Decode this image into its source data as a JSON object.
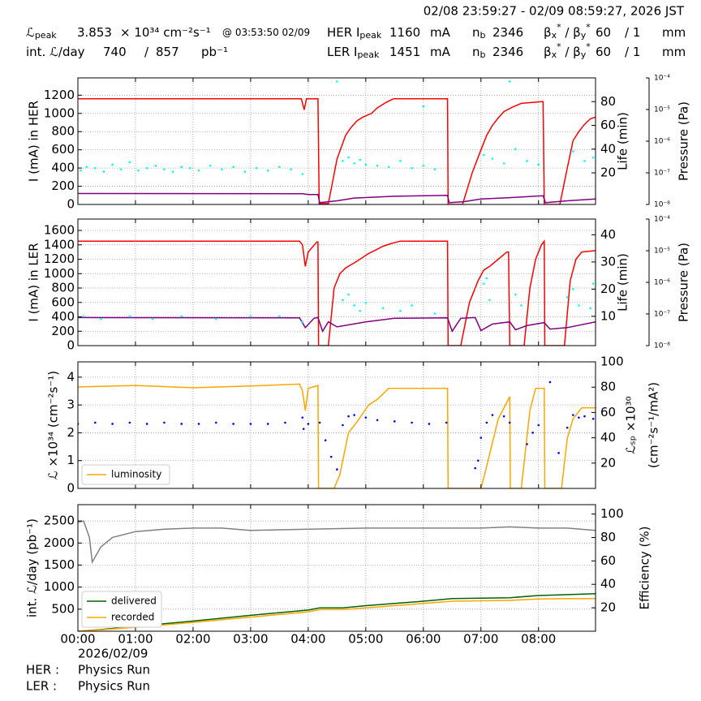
{
  "header": {
    "title": "02/08 23:59:27 - 02/09 08:59:27, 2026 JST",
    "rows": [
      [
        [
          {
            "text": "ℒ"
          },
          {
            "text": "peak",
            "pos": "sub"
          }
        ],
        [
          {
            "text": "3.853"
          }
        ],
        [
          {
            "text": "× 10³⁴ cm⁻²s⁻¹"
          }
        ],
        [
          {
            "text": "@ 03:53:50 02/09"
          }
        ],
        [
          {
            "text": "HER I"
          },
          {
            "text": "peak",
            "pos": "sub"
          }
        ],
        [
          {
            "text": "1160"
          }
        ],
        [
          {
            "text": "mA"
          }
        ],
        [
          {
            "text": "n"
          },
          {
            "text": "b",
            "pos": "sub"
          }
        ],
        [
          {
            "text": "2346"
          }
        ],
        [
          {
            "text": "β"
          },
          {
            "text": "x",
            "pos": "sub"
          },
          {
            "text": "*",
            "pos": "sup"
          },
          {
            "text": " / β"
          },
          {
            "text": "y",
            "pos": "sub"
          },
          {
            "text": "*",
            "pos": "sup"
          }
        ],
        [
          {
            "text": "60"
          }
        ],
        [
          {
            "text": "/ 1"
          }
        ],
        [
          {
            "text": "mm"
          }
        ]
      ],
      [
        [
          {
            "text": "int. ℒ/day"
          }
        ],
        [
          {
            "text": "740"
          }
        ],
        [
          {
            "text": "/"
          }
        ],
        [
          {
            "text": "857"
          }
        ],
        [
          {
            "text": "pb⁻¹"
          }
        ],
        [
          {
            "text": "LER I"
          },
          {
            "text": "peak",
            "pos": "sub"
          }
        ],
        [
          {
            "text": "1451"
          }
        ],
        [
          {
            "text": "mA"
          }
        ],
        [
          {
            "text": "n"
          },
          {
            "text": "b",
            "pos": "sub"
          }
        ],
        [
          {
            "text": "2346"
          }
        ],
        [
          {
            "text": "β"
          },
          {
            "text": "x",
            "pos": "sub"
          },
          {
            "text": "*",
            "pos": "sup"
          },
          {
            "text": " / β"
          },
          {
            "text": "y",
            "pos": "sub"
          },
          {
            "text": "*",
            "pos": "sup"
          }
        ],
        [
          {
            "text": "60"
          }
        ],
        [
          {
            "text": "/ 1"
          }
        ],
        [
          {
            "text": "mm"
          }
        ]
      ]
    ]
  },
  "chart_data": [
    {
      "type": "line",
      "ylabel": "I (mA) in HER",
      "y2label": "Life (min)",
      "y3label": "Pressure (Pa)",
      "xlim": [
        0,
        8.99
      ],
      "ylim": [
        0,
        1390
      ],
      "yticks": [
        0,
        200,
        400,
        600,
        800,
        1000,
        1200
      ],
      "y2lim": [
        -6.6,
        100
      ],
      "y2ticks": [
        20,
        40,
        60,
        80
      ],
      "y3lim": [
        1e-08,
        0.0001
      ],
      "y3log": true,
      "y3ticks": [
        {
          "value": 1e-08,
          "label": "10⁻⁸"
        },
        {
          "value": 1e-07,
          "label": "10⁻⁷"
        },
        {
          "value": 1e-06,
          "label": "10⁻⁶"
        },
        {
          "value": 1e-05,
          "label": "10⁻⁵"
        },
        {
          "value": 0.0001,
          "label": "10⁻⁴"
        }
      ],
      "grid": true,
      "series": [
        {
          "style": "line",
          "color": "#ff0000",
          "x": [
            0,
            3.88,
            3.93,
            3.97,
            4.15,
            4.17,
            4.19,
            4.35,
            4.5,
            4.65,
            4.75,
            4.85,
            4.95,
            5.1,
            5.2,
            5.35,
            5.48,
            6.42,
            6.43,
            6.68,
            6.85,
            7.0,
            7.1,
            7.2,
            7.3,
            7.4,
            7.55,
            7.7,
            8.06,
            8.08,
            8.1,
            8.37,
            8.5,
            8.6,
            8.7,
            8.8,
            8.9,
            8.99
          ],
          "values": [
            1160,
            1160,
            1040,
            1160,
            1160,
            1160,
            10,
            10,
            500,
            760,
            850,
            920,
            960,
            1000,
            1060,
            1120,
            1160,
            1160,
            0,
            0,
            350,
            600,
            760,
            870,
            950,
            1020,
            1070,
            1110,
            1130,
            1130,
            0,
            0,
            400,
            700,
            800,
            880,
            940,
            960
          ]
        },
        {
          "style": "line",
          "color": "#800080",
          "x": [
            0,
            3.9,
            4.0,
            4.17,
            4.2,
            4.5,
            4.8,
            5.5,
            6.42,
            6.45,
            6.7,
            7.0,
            7.5,
            8.08,
            8.12,
            8.5,
            8.99
          ],
          "values": [
            120,
            118,
            110,
            110,
            20,
            40,
            70,
            90,
            100,
            20,
            30,
            60,
            75,
            95,
            20,
            40,
            60
          ]
        },
        {
          "style": "scatter",
          "color": "#00ffff",
          "axis": "y2",
          "x": [
            0.05,
            0.15,
            0.3,
            0.45,
            0.6,
            0.75,
            0.9,
            1.05,
            1.2,
            1.35,
            1.5,
            1.65,
            1.8,
            1.95,
            2.1,
            2.3,
            2.5,
            2.7,
            2.9,
            3.1,
            3.3,
            3.5,
            3.7,
            3.9,
            4.6,
            4.7,
            4.8,
            4.9,
            5.0,
            5.2,
            5.4,
            5.6,
            5.8,
            6.0,
            6.2,
            4.5,
            7.05,
            7.2,
            7.4,
            7.6,
            7.8,
            8.0,
            8.6,
            8.8,
            8.95,
            7.5,
            6.0
          ],
          "values": [
            22,
            25,
            24,
            21,
            27,
            23,
            29,
            22,
            24,
            26,
            23,
            21,
            25,
            24,
            22,
            26,
            23,
            25,
            21,
            24,
            22,
            25,
            23,
            19,
            30,
            33,
            28,
            31,
            27,
            26,
            25,
            30,
            24,
            26,
            23,
            97,
            35,
            32,
            28,
            40,
            30,
            27,
            38,
            30,
            33,
            97,
            76
          ]
        }
      ]
    },
    {
      "type": "line",
      "ylabel": "I (mA) in LER",
      "y2label": "Life (min)",
      "y3label": "Pressure (Pa)",
      "xlim": [
        0,
        8.99
      ],
      "ylim": [
        0,
        1758
      ],
      "yticks": [
        0,
        200,
        400,
        600,
        800,
        1000,
        1200,
        1400,
        1600
      ],
      "y2lim": [
        -0.8,
        45.8
      ],
      "y2ticks": [
        10,
        20,
        30,
        40
      ],
      "y3lim": [
        1e-08,
        0.0001
      ],
      "y3log": true,
      "y3ticks": [
        {
          "value": 1e-08,
          "label": "10⁻⁸"
        },
        {
          "value": 1e-07,
          "label": "10⁻⁷"
        },
        {
          "value": 1e-06,
          "label": "10⁻⁶"
        },
        {
          "value": 1e-05,
          "label": "10⁻⁵"
        },
        {
          "value": 0.0001,
          "label": "10⁻⁴"
        }
      ],
      "grid": true,
      "series": [
        {
          "style": "line",
          "color": "#ff0000",
          "x": [
            0,
            3.85,
            3.9,
            3.95,
            4.0,
            4.15,
            4.17,
            4.18,
            4.35,
            4.45,
            4.55,
            4.65,
            4.8,
            4.9,
            5.05,
            5.15,
            5.3,
            5.45,
            5.6,
            6.42,
            6.43,
            6.65,
            6.8,
            6.95,
            7.05,
            7.15,
            7.3,
            7.45,
            7.48,
            7.5,
            7.75,
            7.85,
            7.95,
            8.05,
            8.1,
            8.11,
            8.45,
            8.55,
            8.65,
            8.75,
            8.99
          ],
          "values": [
            1451,
            1451,
            1400,
            1100,
            1300,
            1440,
            1440,
            0,
            0,
            800,
            1000,
            1080,
            1150,
            1200,
            1280,
            1320,
            1380,
            1420,
            1451,
            1451,
            0,
            0,
            600,
            900,
            1050,
            1100,
            1200,
            1300,
            1300,
            0,
            0,
            800,
            1200,
            1400,
            1450,
            0,
            0,
            900,
            1200,
            1300,
            1320
          ]
        },
        {
          "style": "line",
          "color": "#800080",
          "x": [
            0,
            3.85,
            3.95,
            4.1,
            4.17,
            4.25,
            4.35,
            4.5,
            5.0,
            5.5,
            6.42,
            6.5,
            6.65,
            6.9,
            7.0,
            7.2,
            7.5,
            7.6,
            7.8,
            8.1,
            8.2,
            8.5,
            8.99
          ],
          "values": [
            390,
            385,
            250,
            380,
            390,
            200,
            330,
            260,
            330,
            380,
            385,
            200,
            380,
            390,
            210,
            300,
            330,
            220,
            280,
            320,
            230,
            250,
            330
          ]
        },
        {
          "style": "scatter",
          "color": "#00ffff",
          "axis": "y2",
          "x": [
            0.1,
            0.4,
            0.9,
            1.3,
            1.8,
            2.4,
            3.0,
            3.5,
            3.9,
            4.6,
            4.7,
            4.8,
            4.9,
            5.0,
            5.3,
            5.6,
            5.8,
            6.2,
            7.05,
            7.1,
            7.15,
            7.6,
            7.7,
            8.5,
            8.6,
            8.7,
            8.9,
            8.95
          ],
          "values": [
            10,
            9,
            10,
            9,
            10,
            9,
            10,
            10,
            8,
            16,
            18,
            14,
            12,
            15,
            13,
            12,
            14,
            11,
            22,
            24,
            16,
            18,
            14,
            17,
            20,
            14,
            13,
            22
          ]
        }
      ]
    },
    {
      "type": "line",
      "ylabel": "ℒ ×10³⁴ (cm⁻²s⁻¹)",
      "y2label": [
        "ℒₛₚ ×10³⁰",
        "(cm⁻²s⁻¹/mA²)"
      ],
      "xlim": [
        0,
        8.99
      ],
      "ylim": [
        0,
        4.55
      ],
      "yticks": [
        0,
        1,
        2,
        3,
        4
      ],
      "y2lim": [
        0,
        100
      ],
      "y2ticks": [
        20,
        40,
        60,
        80,
        100
      ],
      "grid": true,
      "legend": "lower left",
      "series": [
        {
          "name": "luminosity",
          "style": "line",
          "color": "#ffa500",
          "x": [
            0,
            1.0,
            2.0,
            3.0,
            3.85,
            3.9,
            3.95,
            4.0,
            4.17,
            4.18,
            4.45,
            4.55,
            4.7,
            4.85,
            4.95,
            5.05,
            5.2,
            5.4,
            6.42,
            6.43,
            7.0,
            7.1,
            7.3,
            7.5,
            7.51,
            7.7,
            7.85,
            7.95,
            8.1,
            8.11,
            8.4,
            8.5,
            8.6,
            8.75,
            8.99
          ],
          "values": [
            3.65,
            3.7,
            3.62,
            3.68,
            3.75,
            3.5,
            2.8,
            3.6,
            3.7,
            0,
            0,
            0.5,
            2.0,
            2.4,
            2.7,
            3.0,
            3.2,
            3.6,
            3.6,
            0,
            0,
            0.8,
            2.5,
            3.3,
            0,
            0,
            2.8,
            3.6,
            3.6,
            0,
            0,
            1.8,
            2.5,
            2.9,
            2.9
          ]
        },
        {
          "style": "scatter",
          "color": "#0000ff",
          "axis": "y2",
          "x": [
            0,
            0.3,
            0.6,
            0.9,
            1.2,
            1.5,
            1.8,
            2.1,
            2.4,
            2.7,
            3.0,
            3.3,
            3.6,
            3.9,
            3.92,
            4.0,
            4.2,
            4.3,
            4.4,
            4.5,
            4.6,
            4.7,
            4.8,
            5.0,
            5.2,
            5.5,
            5.8,
            6.1,
            6.4,
            6.9,
            6.95,
            7.0,
            7.1,
            7.2,
            7.4,
            7.5,
            7.8,
            7.9,
            8.0,
            8.2,
            8.35,
            8.5,
            8.6,
            8.7,
            8.8,
            8.95
          ],
          "values": [
            51,
            52,
            51,
            52,
            51,
            52,
            51,
            51,
            52,
            51,
            51,
            51,
            52,
            56,
            47,
            51,
            52,
            38,
            25,
            15,
            50,
            57,
            58,
            56,
            54,
            53,
            52,
            51,
            52,
            16,
            22,
            40,
            52,
            58,
            57,
            52,
            35,
            44,
            50,
            84,
            28,
            48,
            58,
            56,
            57,
            55
          ]
        }
      ]
    },
    {
      "type": "line",
      "ylabel": "int. ℒ/day (pb⁻¹)",
      "y2label": "Efficiency (%)",
      "xlim": [
        0,
        8.99
      ],
      "ylim": [
        0,
        2870
      ],
      "yticks": [
        500,
        1000,
        1500,
        2000,
        2500
      ],
      "y2lim": [
        0,
        108
      ],
      "y2ticks": [
        20,
        40,
        60,
        80,
        100
      ],
      "xticks": [
        {
          "value": 0,
          "label": "00:00"
        },
        {
          "value": 1,
          "label": "01:00"
        },
        {
          "value": 2,
          "label": "02:00"
        },
        {
          "value": 3,
          "label": "03:00"
        },
        {
          "value": 4,
          "label": "04:00"
        },
        {
          "value": 5,
          "label": "05:00"
        },
        {
          "value": 6,
          "label": "06:00"
        },
        {
          "value": 7,
          "label": "07:00"
        },
        {
          "value": 8,
          "label": "08:00"
        }
      ],
      "date_label": "2026/02/09",
      "grid": true,
      "legend": "lower left",
      "series": [
        {
          "style": "line",
          "color": "#808080",
          "axis": "y2",
          "x": [
            0,
            0.1,
            0.2,
            0.25,
            0.4,
            0.6,
            1.0,
            1.5,
            2.0,
            2.5,
            3.0,
            4.0,
            5.0,
            6.0,
            7.0,
            7.5,
            8.0,
            8.5,
            8.99
          ],
          "values": [
            93,
            94,
            80,
            59,
            72,
            80,
            85,
            87,
            88,
            88,
            86,
            87,
            88,
            88,
            88,
            89,
            88,
            88,
            86
          ]
        },
        {
          "name": "delivered",
          "style": "line",
          "color": "#006400",
          "x": [
            0,
            0.5,
            1,
            2,
            3,
            4,
            4.2,
            4.6,
            5,
            6,
            6.5,
            7,
            7.5,
            8,
            8.5,
            8.99
          ],
          "values": [
            0,
            50,
            110,
            230,
            360,
            480,
            530,
            530,
            580,
            680,
            740,
            750,
            760,
            810,
            830,
            850
          ]
        },
        {
          "name": "recorded",
          "style": "line",
          "color": "#ffa500",
          "x": [
            0,
            0.5,
            1,
            2,
            3,
            4,
            4.2,
            4.6,
            5,
            6,
            6.5,
            7,
            7.5,
            8,
            8.5,
            8.99
          ],
          "values": [
            0,
            40,
            90,
            200,
            320,
            440,
            490,
            490,
            530,
            630,
            680,
            690,
            700,
            730,
            740,
            740
          ]
        }
      ]
    }
  ],
  "footer": {
    "rows": [
      [
        "HER :",
        "Physics Run"
      ],
      [
        "LER :",
        "Physics Run"
      ]
    ]
  }
}
